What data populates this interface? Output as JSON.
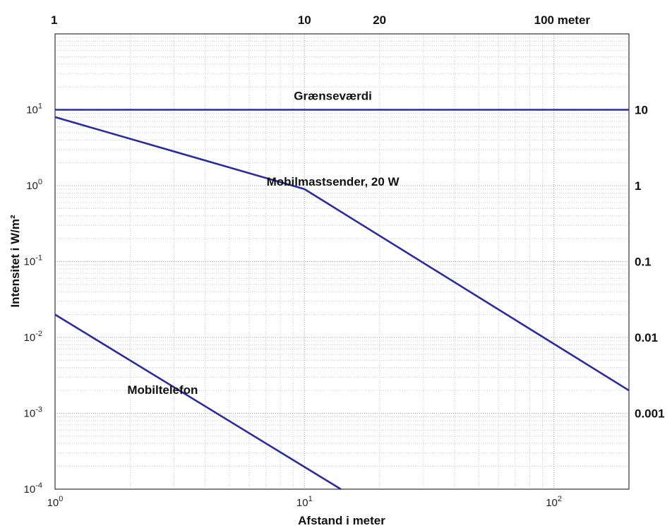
{
  "chart_data": {
    "type": "line",
    "xlabel": "Afstand i meter",
    "ylabel": "Intensitet i W/m²",
    "x_scale": "log",
    "y_scale": "log",
    "xlim": [
      1,
      200
    ],
    "ylim": [
      0.0001,
      100
    ],
    "grid": true,
    "bottom_ticks": [
      {
        "value": 1,
        "base": "10",
        "exp": "0"
      },
      {
        "value": 10,
        "base": "10",
        "exp": "1"
      },
      {
        "value": 100,
        "base": "10",
        "exp": "2"
      }
    ],
    "left_ticks": [
      {
        "value": 10,
        "base": "10",
        "exp": "1"
      },
      {
        "value": 1,
        "base": "10",
        "exp": "0"
      },
      {
        "value": 0.1,
        "base": "10",
        "exp": "-1"
      },
      {
        "value": 0.01,
        "base": "10",
        "exp": "-2"
      },
      {
        "value": 0.001,
        "base": "10",
        "exp": "-3"
      },
      {
        "value": 0.0001,
        "base": "10",
        "exp": "-4"
      }
    ],
    "top_ticks": [
      {
        "value": 1,
        "label": "1"
      },
      {
        "value": 10,
        "label": "10"
      },
      {
        "value": 20,
        "label": "20"
      },
      {
        "value": 100,
        "label": "100  meter"
      }
    ],
    "right_ticks": [
      {
        "value": 10,
        "label": "10"
      },
      {
        "value": 1,
        "label": "1"
      },
      {
        "value": 0.1,
        "label": "0.1"
      },
      {
        "value": 0.01,
        "label": "0.01"
      },
      {
        "value": 0.001,
        "label": "0.001"
      }
    ],
    "series": [
      {
        "x": [
          1,
          200
        ],
        "y": [
          10,
          10
        ],
        "color": "#2b2b9e"
      },
      {
        "x": [
          1,
          10,
          200
        ],
        "y": [
          8,
          0.9,
          0.002
        ],
        "color": "#2b2b9e"
      },
      {
        "x": [
          1,
          14
        ],
        "y": [
          0.02,
          0.0001
        ],
        "color": "#2b2b9e"
      }
    ],
    "annotations": [
      {
        "text": "Grænseværdi",
        "x": 13,
        "y": 13.5
      },
      {
        "text": "Mobilmastsender, 20 W",
        "x": 13,
        "y": 1.0
      },
      {
        "text": "Mobiltelefon",
        "x": 2.7,
        "y": 0.0018
      }
    ]
  }
}
